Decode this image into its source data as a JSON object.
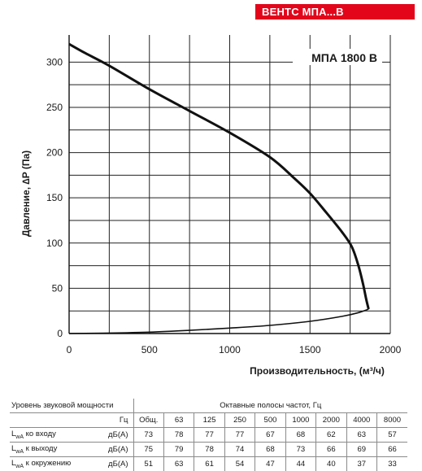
{
  "badge": "ВЕНТС МПА...В",
  "chart_data": {
    "type": "line",
    "model_label": "МПА 1800 В",
    "xlabel": "Производительность, (м³/ч)",
    "ylabel": "Давление, ∆P (Па)",
    "xlim": [
      0,
      2000
    ],
    "ylim": [
      0,
      330
    ],
    "x_ticks": [
      0,
      500,
      1000,
      1500,
      2000
    ],
    "y_ticks": [
      0,
      50,
      100,
      150,
      200,
      250,
      300
    ],
    "x_grid": [
      0,
      250,
      500,
      750,
      1000,
      1250,
      1500,
      1750,
      2000
    ],
    "y_grid": [
      0,
      25,
      50,
      75,
      100,
      125,
      150,
      175,
      200,
      225,
      250,
      275,
      300
    ],
    "grid": true,
    "series": [
      {
        "values": [
          {
            "x": 0,
            "y": 320
          },
          {
            "x": 100,
            "y": 310
          },
          {
            "x": 250,
            "y": 296
          },
          {
            "x": 500,
            "y": 270
          },
          {
            "x": 750,
            "y": 246
          },
          {
            "x": 1000,
            "y": 222
          },
          {
            "x": 1250,
            "y": 195
          },
          {
            "x": 1400,
            "y": 172
          },
          {
            "x": 1500,
            "y": 155
          },
          {
            "x": 1600,
            "y": 134
          },
          {
            "x": 1700,
            "y": 112
          },
          {
            "x": 1760,
            "y": 96
          },
          {
            "x": 1800,
            "y": 76
          },
          {
            "x": 1830,
            "y": 55
          },
          {
            "x": 1850,
            "y": 38
          },
          {
            "x": 1865,
            "y": 27
          }
        ]
      },
      {
        "values": [
          {
            "x": 0,
            "y": 0
          },
          {
            "x": 250,
            "y": 0.5
          },
          {
            "x": 500,
            "y": 1.5
          },
          {
            "x": 750,
            "y": 3.5
          },
          {
            "x": 1000,
            "y": 6
          },
          {
            "x": 1250,
            "y": 9
          },
          {
            "x": 1500,
            "y": 13.5
          },
          {
            "x": 1700,
            "y": 19
          },
          {
            "x": 1800,
            "y": 23
          },
          {
            "x": 1865,
            "y": 27
          }
        ]
      }
    ]
  },
  "sound_table": {
    "col1_header": "Уровень звуковой мощности",
    "bands_header": "Октавные полосы частот, Гц",
    "unit_hz": "Гц",
    "columns": [
      "Общ.",
      "63",
      "125",
      "250",
      "500",
      "1000",
      "2000",
      "4000",
      "8000"
    ],
    "rows": [
      {
        "label_sub": "wA",
        "label_rest": " ко входу",
        "unit": "дБ(А)",
        "values": [
          "73",
          "78",
          "77",
          "77",
          "67",
          "68",
          "62",
          "63",
          "57"
        ]
      },
      {
        "label_sub": "wA",
        "label_rest": " к выходу",
        "unit": "дБ(А)",
        "values": [
          "75",
          "79",
          "78",
          "74",
          "68",
          "73",
          "66",
          "69",
          "66"
        ]
      },
      {
        "label_sub": "wA",
        "label_rest": " к окружению",
        "unit": "дБ(А)",
        "values": [
          "51",
          "63",
          "61",
          "54",
          "47",
          "44",
          "40",
          "37",
          "33"
        ]
      }
    ],
    "label_prefix": "L"
  }
}
